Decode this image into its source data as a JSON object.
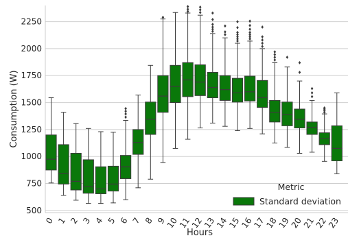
{
  "chart_data": {
    "type": "box",
    "xlabel": "Hours",
    "ylabel": "Consumption (W)",
    "ylim": [
      480,
      2400
    ],
    "y_ticks": [
      500,
      750,
      1000,
      1250,
      1500,
      1750,
      2000,
      2250
    ],
    "grid": "horizontal",
    "legend": {
      "title": "Metric",
      "entries": [
        "Standard deviation"
      ],
      "placement": "lower-right"
    },
    "colors": {
      "box": "#0a780a",
      "line": "#3c3c3c",
      "grid": "#cfcfcf",
      "background": "#ffffff"
    },
    "categories": [
      "0",
      "1",
      "2",
      "3",
      "4",
      "5",
      "6",
      "7",
      "8",
      "9",
      "10",
      "11",
      "12",
      "13",
      "14",
      "15",
      "16",
      "17",
      "18",
      "19",
      "20",
      "21",
      "22",
      "23"
    ],
    "boxes": [
      {
        "whislo": 755,
        "q1": 875,
        "med": 975,
        "q3": 1200,
        "whishi": 1545,
        "fliers": []
      },
      {
        "whislo": 640,
        "q1": 745,
        "med": 845,
        "q3": 1110,
        "whishi": 1410,
        "fliers": []
      },
      {
        "whislo": 595,
        "q1": 690,
        "med": 770,
        "q3": 1030,
        "whishi": 1305,
        "fliers": []
      },
      {
        "whislo": 565,
        "q1": 660,
        "med": 720,
        "q3": 970,
        "whishi": 1260,
        "fliers": []
      },
      {
        "whislo": 565,
        "q1": 655,
        "med": 700,
        "q3": 905,
        "whishi": 1230,
        "fliers": []
      },
      {
        "whislo": 570,
        "q1": 680,
        "med": 745,
        "q3": 910,
        "whishi": 1225,
        "fliers": []
      },
      {
        "whislo": 600,
        "q1": 795,
        "med": 905,
        "q3": 1010,
        "whishi": 1335,
        "fliers": [
          1365,
          1395,
          1420,
          1445
        ]
      },
      {
        "whislo": 710,
        "q1": 1020,
        "med": 1130,
        "q3": 1250,
        "whishi": 1570,
        "fliers": []
      },
      {
        "whislo": 790,
        "q1": 1205,
        "med": 1345,
        "q3": 1505,
        "whishi": 1845,
        "fliers": []
      },
      {
        "whislo": 945,
        "q1": 1410,
        "med": 1560,
        "q3": 1750,
        "whishi": 2275,
        "fliers": [
          2290
        ]
      },
      {
        "whislo": 1075,
        "q1": 1500,
        "med": 1650,
        "q3": 1845,
        "whishi": 2335,
        "fliers": []
      },
      {
        "whislo": 1160,
        "q1": 1555,
        "med": 1710,
        "q3": 1870,
        "whishi": 2330,
        "fliers": [
          2345,
          2365,
          2390
        ]
      },
      {
        "whislo": 1265,
        "q1": 1565,
        "med": 1690,
        "q3": 1850,
        "whishi": 2310,
        "fliers": [
          2335,
          2360,
          2385
        ]
      },
      {
        "whislo": 1310,
        "q1": 1545,
        "med": 1640,
        "q3": 1780,
        "whishi": 2140,
        "fliers": [
          2160,
          2180,
          2200,
          2225,
          2270,
          2330
        ]
      },
      {
        "whislo": 1280,
        "q1": 1520,
        "med": 1620,
        "q3": 1750,
        "whishi": 2100,
        "fliers": [
          2130,
          2155,
          2210
        ]
      },
      {
        "whislo": 1240,
        "q1": 1505,
        "med": 1590,
        "q3": 1725,
        "whishi": 2050,
        "fliers": [
          2070,
          2090,
          2110,
          2130,
          2150,
          2195,
          2250
        ]
      },
      {
        "whislo": 1260,
        "q1": 1515,
        "med": 1600,
        "q3": 1745,
        "whishi": 2070,
        "fliers": [
          2090,
          2110,
          2130,
          2150,
          2180,
          2215,
          2255
        ]
      },
      {
        "whislo": 1210,
        "q1": 1455,
        "med": 1545,
        "q3": 1705,
        "whishi": 2000,
        "fliers": [
          2020,
          2050,
          2080,
          2110,
          2200
        ]
      },
      {
        "whislo": 1125,
        "q1": 1320,
        "med": 1410,
        "q3": 1520,
        "whishi": 1870,
        "fliers": [
          1895,
          1920,
          1945,
          1970
        ]
      },
      {
        "whislo": 1085,
        "q1": 1285,
        "med": 1390,
        "q3": 1505,
        "whishi": 1830,
        "fliers": [
          1920
        ]
      },
      {
        "whislo": 1030,
        "q1": 1265,
        "med": 1345,
        "q3": 1440,
        "whishi": 1700,
        "fliers": [
          1780,
          1870
        ]
      },
      {
        "whislo": 1040,
        "q1": 1205,
        "med": 1270,
        "q3": 1320,
        "whishi": 1520,
        "fliers": [
          1555,
          1590,
          1630
        ]
      },
      {
        "whislo": 955,
        "q1": 1110,
        "med": 1165,
        "q3": 1220,
        "whishi": 1395,
        "fliers": [
          1410,
          1425,
          1440,
          1450
        ]
      },
      {
        "whislo": 840,
        "q1": 960,
        "med": 1075,
        "q3": 1285,
        "whishi": 1590,
        "fliers": []
      }
    ]
  }
}
